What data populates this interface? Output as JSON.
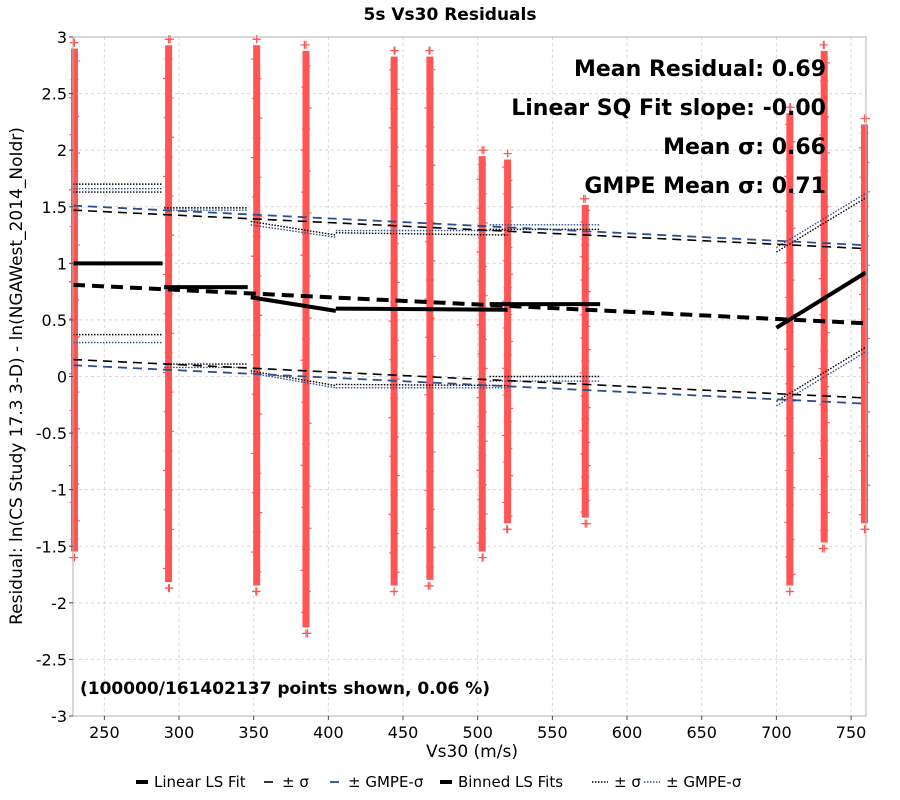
{
  "chart_data": {
    "type": "scatter",
    "title": "5s Vs30 Residuals",
    "xlabel": "Vs30 (m/s)",
    "ylabel": "Residual: ln(CS Study 17.3 3-D) - ln(NGAWest_2014_NoIdr)",
    "xlim": [
      229,
      760
    ],
    "ylim": [
      -3,
      3
    ],
    "xticks": [
      250,
      300,
      350,
      400,
      450,
      500,
      550,
      600,
      650,
      700,
      750
    ],
    "yticks": [
      -3,
      -2.5,
      -2,
      -1.5,
      -1,
      -0.5,
      0,
      0.5,
      1,
      1.5,
      2,
      2.5,
      3
    ],
    "grid": true,
    "annotations": [
      "Mean Residual: 0.69",
      "Linear SQ Fit slope: -0.00",
      "Mean σ: 0.66",
      "GMPE Mean σ: 0.71"
    ],
    "note": "(100000/161402137 points shown, 0.06 %)",
    "colors": {
      "scatter": "#ff5555",
      "fit": "#000000",
      "gmpe": "#2a4f8a",
      "grid": "#d8d8d8"
    },
    "scatter_columns": [
      {
        "x": 230,
        "ymin": -1.6,
        "ymax": 2.95
      },
      {
        "x": 293,
        "ymin": -1.87,
        "ymax": 2.98
      },
      {
        "x": 352,
        "ymin": -1.9,
        "ymax": 2.98
      },
      {
        "x": 385,
        "ymin": -2.27,
        "ymax": 2.93
      },
      {
        "x": 444,
        "ymin": -1.9,
        "ymax": 2.88
      },
      {
        "x": 468,
        "ymin": -1.85,
        "ymax": 2.88
      },
      {
        "x": 503,
        "ymin": -1.6,
        "ymax": 2.0
      },
      {
        "x": 520,
        "ymin": -1.35,
        "ymax": 1.97
      },
      {
        "x": 572,
        "ymin": -1.3,
        "ymax": 1.57
      },
      {
        "x": 709,
        "ymin": -1.9,
        "ymax": 2.38
      },
      {
        "x": 732,
        "ymin": -1.52,
        "ymax": 2.93
      },
      {
        "x": 759,
        "ymin": -1.35,
        "ymax": 2.28
      }
    ],
    "series": [
      {
        "name": "Linear LS Fit",
        "style": "dashed-thick",
        "x": [
          229,
          760
        ],
        "y": [
          0.81,
          0.47
        ]
      },
      {
        "name": "± σ",
        "style": "dashed-thin",
        "x": [
          229,
          760
        ],
        "y": [
          1.47,
          1.13
        ]
      },
      {
        "name": "± σ",
        "style": "dashed-thin",
        "x": [
          229,
          760
        ],
        "y": [
          0.15,
          -0.19
        ]
      },
      {
        "name": "± GMPE-σ",
        "style": "dashed-gmpe",
        "x": [
          229,
          760
        ],
        "y": [
          1.51,
          1.16
        ]
      },
      {
        "name": "± GMPE-σ",
        "style": "dashed-gmpe",
        "x": [
          229,
          760
        ],
        "y": [
          0.1,
          -0.24
        ]
      },
      {
        "name": "Binned LS Fits",
        "style": "solid-thick",
        "segments": [
          {
            "x": [
              229,
              289
            ],
            "y": [
              1.0,
              1.0
            ]
          },
          {
            "x": [
              290,
              346
            ],
            "y": [
              0.79,
              0.79
            ]
          },
          {
            "x": [
              348,
              405
            ],
            "y": [
              0.7,
              0.58
            ]
          },
          {
            "x": [
              405,
              520
            ],
            "y": [
              0.6,
              0.59
            ]
          },
          {
            "x": [
              508,
              582
            ],
            "y": [
              0.64,
              0.64
            ]
          },
          {
            "x": [
              700,
              760
            ],
            "y": [
              0.43,
              0.92
            ]
          }
        ]
      },
      {
        "name": "± σ",
        "style": "dotted-black",
        "segments": [
          {
            "x": [
              229,
              289
            ],
            "y": [
              1.7,
              1.7
            ]
          },
          {
            "x": [
              229,
              289
            ],
            "y": [
              1.63,
              1.63
            ]
          },
          {
            "x": [
              229,
              289
            ],
            "y": [
              0.37,
              0.37
            ]
          },
          {
            "x": [
              290,
              346
            ],
            "y": [
              1.49,
              1.49
            ]
          },
          {
            "x": [
              290,
              346
            ],
            "y": [
              0.11,
              0.11
            ]
          },
          {
            "x": [
              348,
              405
            ],
            "y": [
              1.37,
              1.25
            ]
          },
          {
            "x": [
              348,
              405
            ],
            "y": [
              0.05,
              -0.08
            ]
          },
          {
            "x": [
              405,
              520
            ],
            "y": [
              1.27,
              1.25
            ]
          },
          {
            "x": [
              405,
              520
            ],
            "y": [
              -0.07,
              -0.08
            ]
          },
          {
            "x": [
              508,
              582
            ],
            "y": [
              1.3,
              1.3
            ]
          },
          {
            "x": [
              508,
              582
            ],
            "y": [
              0.0,
              0.0
            ]
          },
          {
            "x": [
              700,
              760
            ],
            "y": [
              1.1,
              1.58
            ]
          },
          {
            "x": [
              700,
              760
            ],
            "y": [
              -0.22,
              0.26
            ]
          }
        ]
      },
      {
        "name": "± GMPE-σ",
        "style": "dotted-gmpe",
        "segments": [
          {
            "x": [
              229,
              289
            ],
            "y": [
              1.66,
              1.66
            ]
          },
          {
            "x": [
              229,
              289
            ],
            "y": [
              0.3,
              0.3
            ]
          },
          {
            "x": [
              290,
              346
            ],
            "y": [
              1.47,
              1.47
            ]
          },
          {
            "x": [
              290,
              346
            ],
            "y": [
              0.08,
              0.08
            ]
          },
          {
            "x": [
              348,
              405
            ],
            "y": [
              1.34,
              1.23
            ]
          },
          {
            "x": [
              348,
              405
            ],
            "y": [
              0.03,
              -0.1
            ]
          },
          {
            "x": [
              405,
              520
            ],
            "y": [
              1.29,
              1.29
            ]
          },
          {
            "x": [
              405,
              520
            ],
            "y": [
              -0.1,
              -0.1
            ]
          },
          {
            "x": [
              508,
              582
            ],
            "y": [
              1.34,
              1.34
            ]
          },
          {
            "x": [
              508,
              582
            ],
            "y": [
              -0.04,
              -0.04
            ]
          },
          {
            "x": [
              700,
              760
            ],
            "y": [
              1.14,
              1.62
            ]
          },
          {
            "x": [
              700,
              760
            ],
            "y": [
              -0.26,
              0.22
            ]
          }
        ]
      }
    ],
    "legend": {
      "placement": "bottom",
      "entries": [
        {
          "label": "Linear LS Fit",
          "style": "dashed-thick"
        },
        {
          "label": "± σ",
          "style": "dashed-thin"
        },
        {
          "label": "± GMPE-σ",
          "style": "dashed-gmpe"
        },
        {
          "label": "Binned LS Fits",
          "style": "solid-thick"
        },
        {
          "label": "± σ",
          "style": "dotted-black"
        },
        {
          "label": "± GMPE-σ",
          "style": "dotted-gmpe"
        }
      ]
    }
  }
}
